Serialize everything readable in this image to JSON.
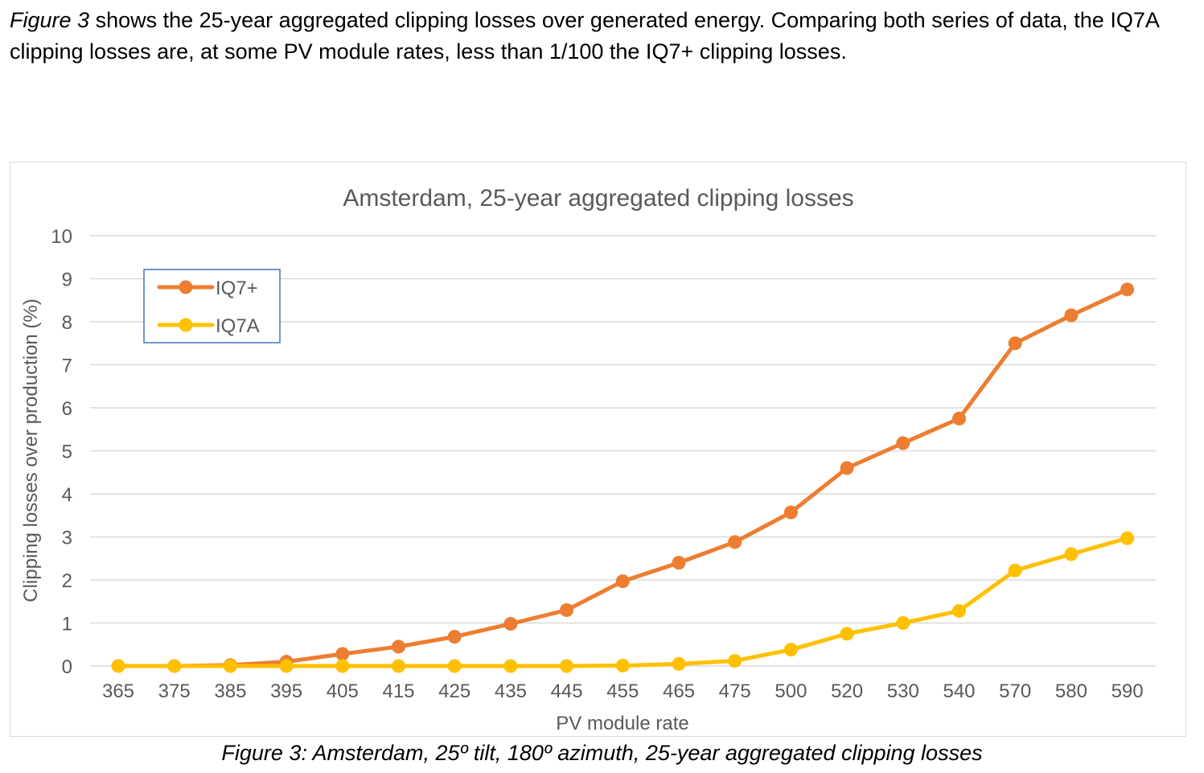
{
  "intro": {
    "figure_ref": "Figure 3",
    "text_part1": " shows the 25-year aggregated clipping losses over generated energy. Comparing both series of data, the IQ7A clipping losses are, at some PV module rates, less than 1/100 the IQ7+ clipping losses."
  },
  "caption": "Figure 3: Amsterdam, 25º tilt, 180º azimuth, 25-year aggregated clipping losses",
  "chart_data": {
    "type": "line",
    "title": "Amsterdam, 25-year aggregated clipping losses",
    "xlabel": "PV module rate",
    "ylabel": "Clipping losses over production (%)",
    "ylim": [
      0,
      10
    ],
    "yticks": [
      "0",
      "1",
      "2",
      "3",
      "4",
      "5",
      "6",
      "7",
      "8",
      "9",
      "10"
    ],
    "grid": true,
    "legend": "top-left",
    "categories": [
      "365",
      "375",
      "385",
      "395",
      "405",
      "415",
      "425",
      "435",
      "445",
      "455",
      "465",
      "475",
      "500",
      "520",
      "530",
      "540",
      "570",
      "580",
      "590"
    ],
    "series": [
      {
        "name": "IQ7+",
        "color": "#ED7D31",
        "values": [
          0,
          0,
          0.02,
          0.1,
          0.28,
          0.45,
          0.68,
          0.98,
          1.3,
          1.97,
          2.4,
          2.88,
          3.57,
          4.6,
          5.18,
          5.75,
          7.5,
          8.15,
          8.75
        ]
      },
      {
        "name": "IQ7A",
        "color": "#FFC000",
        "values": [
          0,
          0,
          0,
          0,
          0,
          0,
          0,
          0,
          0,
          0.01,
          0.05,
          0.12,
          0.38,
          0.75,
          1.0,
          1.28,
          2.22,
          2.6,
          2.97
        ]
      }
    ]
  }
}
